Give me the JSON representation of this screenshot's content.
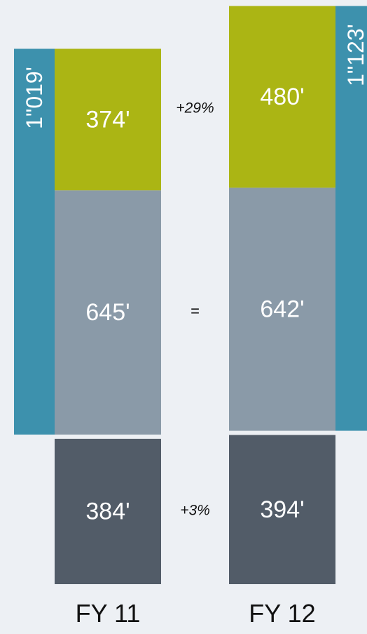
{
  "chart_data": {
    "type": "bar",
    "subtype": "stacked",
    "categories": [
      "FY 11",
      "FY 12"
    ],
    "series": [
      {
        "values": [
          384,
          394
        ],
        "labels": [
          "384'",
          "394'"
        ],
        "color": "#525c68"
      },
      {
        "values": [
          645,
          642
        ],
        "labels": [
          "645'",
          "642'"
        ],
        "color": "#8a9aa8"
      },
      {
        "values": [
          374,
          480
        ],
        "labels": [
          "374'",
          "480'"
        ],
        "color": "#abb514"
      }
    ],
    "subtotals": {
      "values": [
        1019,
        1123
      ],
      "labels": [
        "1\"019'",
        "1\"123'"
      ],
      "color": "#3d91ad"
    },
    "changes": [
      "+3%",
      "=",
      "+29%"
    ],
    "title": "",
    "xlabel": "",
    "ylabel": ""
  },
  "colors": {
    "background": "#edf0f4",
    "label_on_bar": "#ffffff",
    "text": "#111111"
  }
}
